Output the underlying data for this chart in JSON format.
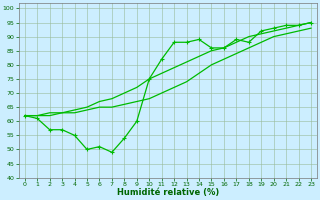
{
  "xlabel": "Humidité relative (%)",
  "bg_color": "#cceeff",
  "line_color": "#00bb00",
  "x": [
    0,
    1,
    2,
    3,
    4,
    5,
    6,
    7,
    8,
    9,
    10,
    11,
    12,
    13,
    14,
    15,
    16,
    17,
    18,
    19,
    20,
    21,
    22,
    23
  ],
  "y_main": [
    62,
    61,
    57,
    57,
    55,
    50,
    51,
    49,
    54,
    60,
    75,
    82,
    88,
    88,
    89,
    86,
    86,
    89,
    88,
    92,
    93,
    94,
    94,
    95
  ],
  "y_trend1": [
    62,
    62,
    62,
    63,
    63,
    64,
    65,
    65,
    66,
    67,
    68,
    70,
    72,
    74,
    77,
    80,
    82,
    84,
    86,
    88,
    90,
    91,
    92,
    93
  ],
  "y_trend2": [
    62,
    62,
    63,
    63,
    64,
    65,
    67,
    68,
    70,
    72,
    75,
    77,
    79,
    81,
    83,
    85,
    86,
    88,
    90,
    91,
    92,
    93,
    94,
    95
  ],
  "ylim": [
    40,
    102
  ],
  "yticks": [
    40,
    45,
    50,
    55,
    60,
    65,
    70,
    75,
    80,
    85,
    90,
    95,
    100
  ],
  "xticks": [
    0,
    1,
    2,
    3,
    4,
    5,
    6,
    7,
    8,
    9,
    10,
    11,
    12,
    13,
    14,
    15,
    16,
    17,
    18,
    19,
    20,
    21,
    22,
    23
  ]
}
